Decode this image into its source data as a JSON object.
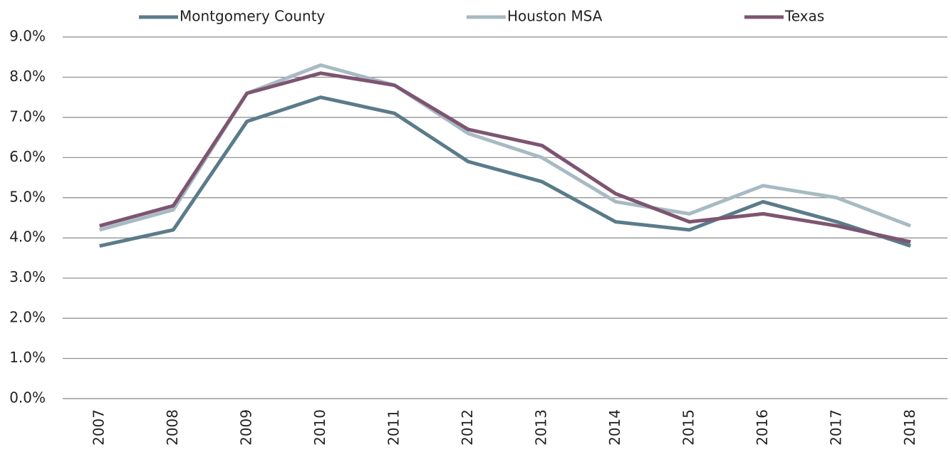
{
  "chart_data": {
    "type": "line",
    "categories": [
      "2007",
      "2008",
      "2009",
      "2010",
      "2011",
      "2012",
      "2013",
      "2014",
      "2015",
      "2016",
      "2017",
      "2018"
    ],
    "series": [
      {
        "name": "Montgomery County",
        "color": "#5a7b8a",
        "values": [
          3.8,
          4.2,
          6.9,
          7.5,
          7.1,
          5.9,
          5.4,
          4.4,
          4.2,
          4.9,
          4.4,
          3.8
        ]
      },
      {
        "name": "Houston MSA",
        "color": "#a8bac3",
        "values": [
          4.2,
          4.7,
          7.6,
          8.3,
          7.8,
          6.6,
          6.0,
          4.9,
          4.6,
          5.3,
          5.0,
          4.3
        ]
      },
      {
        "name": "Texas",
        "color": "#7d5571",
        "values": [
          4.3,
          4.8,
          7.6,
          8.1,
          7.8,
          6.7,
          6.3,
          5.1,
          4.4,
          4.6,
          4.3,
          3.9
        ]
      }
    ],
    "ylim": [
      0,
      9
    ],
    "yticks": [
      {
        "value": 0,
        "label": "0.0%"
      },
      {
        "value": 1,
        "label": "1.0%"
      },
      {
        "value": 2,
        "label": "2.0%"
      },
      {
        "value": 3,
        "label": "3.0%"
      },
      {
        "value": 4,
        "label": "4.0%"
      },
      {
        "value": 5,
        "label": "5.0%"
      },
      {
        "value": 6,
        "label": "6.0%"
      },
      {
        "value": 7,
        "label": "7.0%"
      },
      {
        "value": 8,
        "label": "8.0%"
      },
      {
        "value": 9,
        "label": "9.0%"
      }
    ],
    "grid": true,
    "legend": "top"
  }
}
